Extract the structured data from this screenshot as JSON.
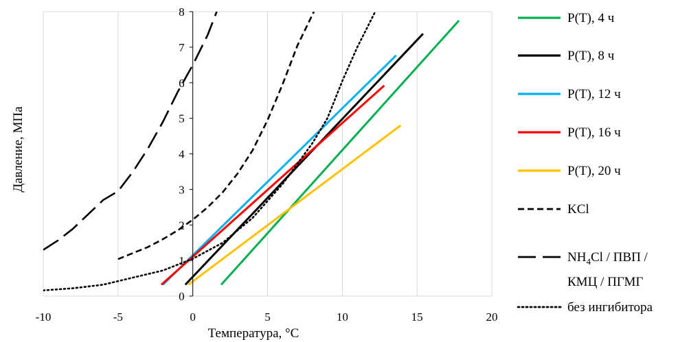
{
  "chart_data": {
    "type": "line",
    "title": "",
    "xlabel": "Температура, °С",
    "ylabel": "Давление, МПа",
    "xlim": [
      -10,
      20
    ],
    "ylim": [
      0,
      8
    ],
    "x_ticks": [
      "-10",
      "-5",
      "0",
      "5",
      "10",
      "15",
      "20"
    ],
    "y_ticks": [
      "0",
      "1",
      "2",
      "3",
      "4",
      "5",
      "6",
      "7",
      "8"
    ],
    "grid": "vertical",
    "legend_position": "right",
    "series": [
      {
        "name": "P(T), 4 ч",
        "color": "#00b050",
        "style": "solid",
        "points": [
          [
            1.9,
            0.32
          ],
          [
            17.8,
            7.75
          ]
        ]
      },
      {
        "name": "P(T), 8 ч",
        "color": "#000000",
        "style": "solid",
        "points": [
          [
            -0.5,
            0.32
          ],
          [
            15.4,
            7.38
          ]
        ]
      },
      {
        "name": "P(T), 12 ч",
        "color": "#00b0f0",
        "style": "solid",
        "points": [
          [
            -2.0,
            0.32
          ],
          [
            13.6,
            6.77
          ]
        ]
      },
      {
        "name": "P(T), 16 ч",
        "color": "#ff0000",
        "style": "solid",
        "points": [
          [
            -2.1,
            0.32
          ],
          [
            12.8,
            5.92
          ]
        ]
      },
      {
        "name": "P(T), 20 ч",
        "color": "#ffc000",
        "style": "solid",
        "points": [
          [
            -0.3,
            0.32
          ],
          [
            13.9,
            4.8
          ]
        ]
      },
      {
        "name": "KCl",
        "color": "#000000",
        "style": "dash",
        "points": [
          [
            -5,
            1.04
          ],
          [
            -3,
            1.38
          ],
          [
            -2,
            1.6
          ],
          [
            -1,
            1.85
          ],
          [
            0,
            2.15
          ],
          [
            1,
            2.5
          ],
          [
            2,
            2.92
          ],
          [
            3,
            3.45
          ],
          [
            4,
            4.1
          ],
          [
            5,
            4.95
          ],
          [
            6,
            5.95
          ],
          [
            7,
            7.05
          ],
          [
            8.1,
            8.0
          ]
        ]
      },
      {
        "name": "NH4Cl / ПВП / КМЦ / ПГМГ",
        "color": "#000000",
        "style": "longdash",
        "points": [
          [
            -10,
            1.3
          ],
          [
            -9,
            1.57
          ],
          [
            -8,
            1.9
          ],
          [
            -7,
            2.3
          ],
          [
            -6,
            2.7
          ],
          [
            -5,
            2.95
          ],
          [
            -4,
            3.5
          ],
          [
            -3,
            4.15
          ],
          [
            -2,
            4.9
          ],
          [
            -1,
            5.75
          ],
          [
            0,
            6.5
          ],
          [
            1,
            7.35
          ],
          [
            1.6,
            8.0
          ]
        ]
      },
      {
        "name": "без ингибитора",
        "color": "#000000",
        "style": "dot",
        "points": [
          [
            -10,
            0.16
          ],
          [
            -8,
            0.22
          ],
          [
            -6,
            0.32
          ],
          [
            -4,
            0.52
          ],
          [
            -2,
            0.72
          ],
          [
            0,
            1.05
          ],
          [
            2,
            1.5
          ],
          [
            4,
            2.2
          ],
          [
            6,
            3.15
          ],
          [
            8,
            4.3
          ],
          [
            9,
            5.0
          ],
          [
            10,
            6.05
          ],
          [
            11,
            7.0
          ],
          [
            12.2,
            8.0
          ]
        ]
      }
    ],
    "legend": [
      {
        "label": "P(T), 4 ч"
      },
      {
        "label": "P(T), 8 ч"
      },
      {
        "label": "P(T), 12 ч"
      },
      {
        "label": "P(T), 16 ч"
      },
      {
        "label": "P(T), 20 ч"
      },
      {
        "label": "KCl"
      },
      {
        "label": "NH",
        "sub": "4",
        "rest": "Cl / ПВП /",
        "line2": "КМЦ / ПГМГ"
      },
      {
        "label": "без ингибитора"
      }
    ]
  }
}
